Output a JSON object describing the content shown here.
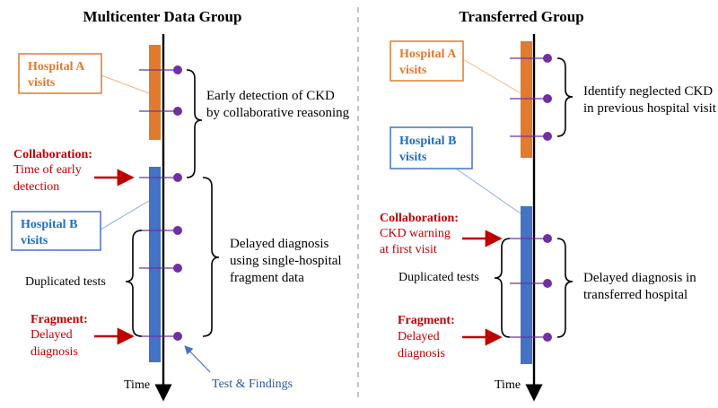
{
  "colors": {
    "orange": "#E07A2E",
    "blue": "#4472C4",
    "red": "#C00000",
    "purple": "#7030A0",
    "hospital_b_label": "#1F6FBF",
    "findings_label": "#2F5597"
  },
  "left_panel": {
    "title": "Multicenter Data Group",
    "hospital_a": [
      "Hospital A",
      "visits"
    ],
    "hospital_b": [
      "Hospital B",
      "visits"
    ],
    "collaboration": {
      "heading": "Collaboration:",
      "lines": [
        "Time of early",
        "detection"
      ]
    },
    "fragment": {
      "heading": "Fragment:",
      "lines": [
        "Delayed",
        "diagnosis"
      ]
    },
    "duplicated_tests": "Duplicated tests",
    "early_detection": [
      "Early detection of CKD",
      "by collaborative reasoning"
    ],
    "delayed_diagnosis": [
      "Delayed diagnosis",
      "using single-hospital",
      "fragment data"
    ],
    "test_findings": "Test & Findings",
    "time_label": "Time"
  },
  "right_panel": {
    "title": "Transferred Group",
    "hospital_a": [
      "Hospital A",
      "visits"
    ],
    "hospital_b": [
      "Hospital B",
      "visits"
    ],
    "collaboration": {
      "heading": "Collaboration:",
      "lines": [
        "CKD warning",
        "at first visit"
      ]
    },
    "fragment": {
      "heading": "Fragment:",
      "lines": [
        "Delayed",
        "diagnosis"
      ]
    },
    "duplicated_tests": "Duplicated tests",
    "identify_neglected": [
      "Identify neglected CKD",
      "in previous hospital visit"
    ],
    "delayed_transferred": [
      "Delayed diagnosis in",
      "transferred hospital"
    ],
    "time_label": "Time"
  }
}
